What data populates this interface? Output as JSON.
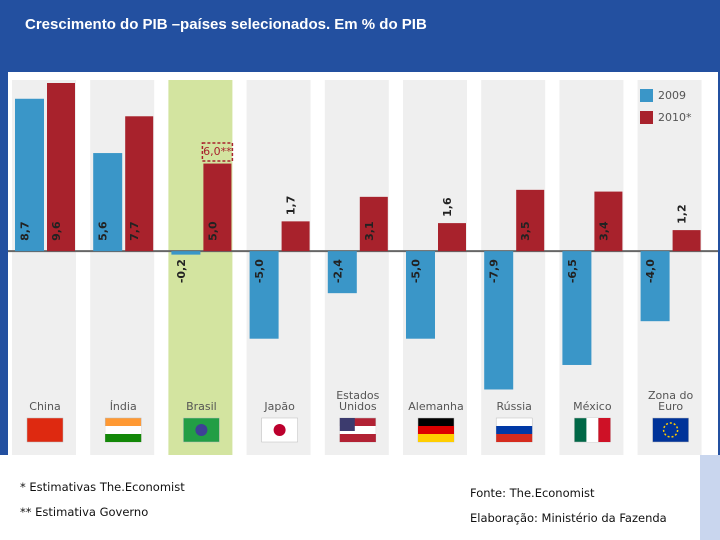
{
  "chart_data": {
    "type": "bar",
    "title": "Crescimento do PIB –países selecionados. Em % do PIB",
    "categories": [
      "China",
      "Índia",
      "Brasil",
      "Japão",
      "Estados Unidos",
      "Alemanha",
      "Rússia",
      "México",
      "Zona do Euro"
    ],
    "series": [
      {
        "name": "2009",
        "color": "#3a96c8",
        "values": [
          8.7,
          5.6,
          -0.2,
          -5.0,
          -2.4,
          -5.0,
          -7.9,
          -6.5,
          -4.0
        ],
        "value_labels": [
          "8,7",
          "5,6",
          "-0,2",
          "-5,0",
          "-2,4",
          "-5,0",
          "-7,9",
          "-6,5",
          "-4,0"
        ]
      },
      {
        "name": "2010*",
        "color": "#a8222c",
        "values": [
          9.6,
          7.7,
          5.0,
          1.7,
          3.1,
          1.6,
          3.5,
          3.4,
          1.2
        ],
        "value_labels": [
          "9,6",
          "7,7",
          "5,0",
          "1,7",
          "3,1",
          "1,6",
          "3,5",
          "3,4",
          "1,2"
        ]
      }
    ],
    "annotation": {
      "text": "6,0**",
      "value": 6.0,
      "category": 2
    },
    "highlight": 2,
    "ylim": [
      -8.5,
      10
    ],
    "legend": "top-right",
    "notes": [
      "* Estimativas The.Economist",
      "** Estimativa Governo"
    ],
    "source": "Fonte: The.Economist",
    "credit": "Elaboração: Ministério da Fazenda"
  }
}
